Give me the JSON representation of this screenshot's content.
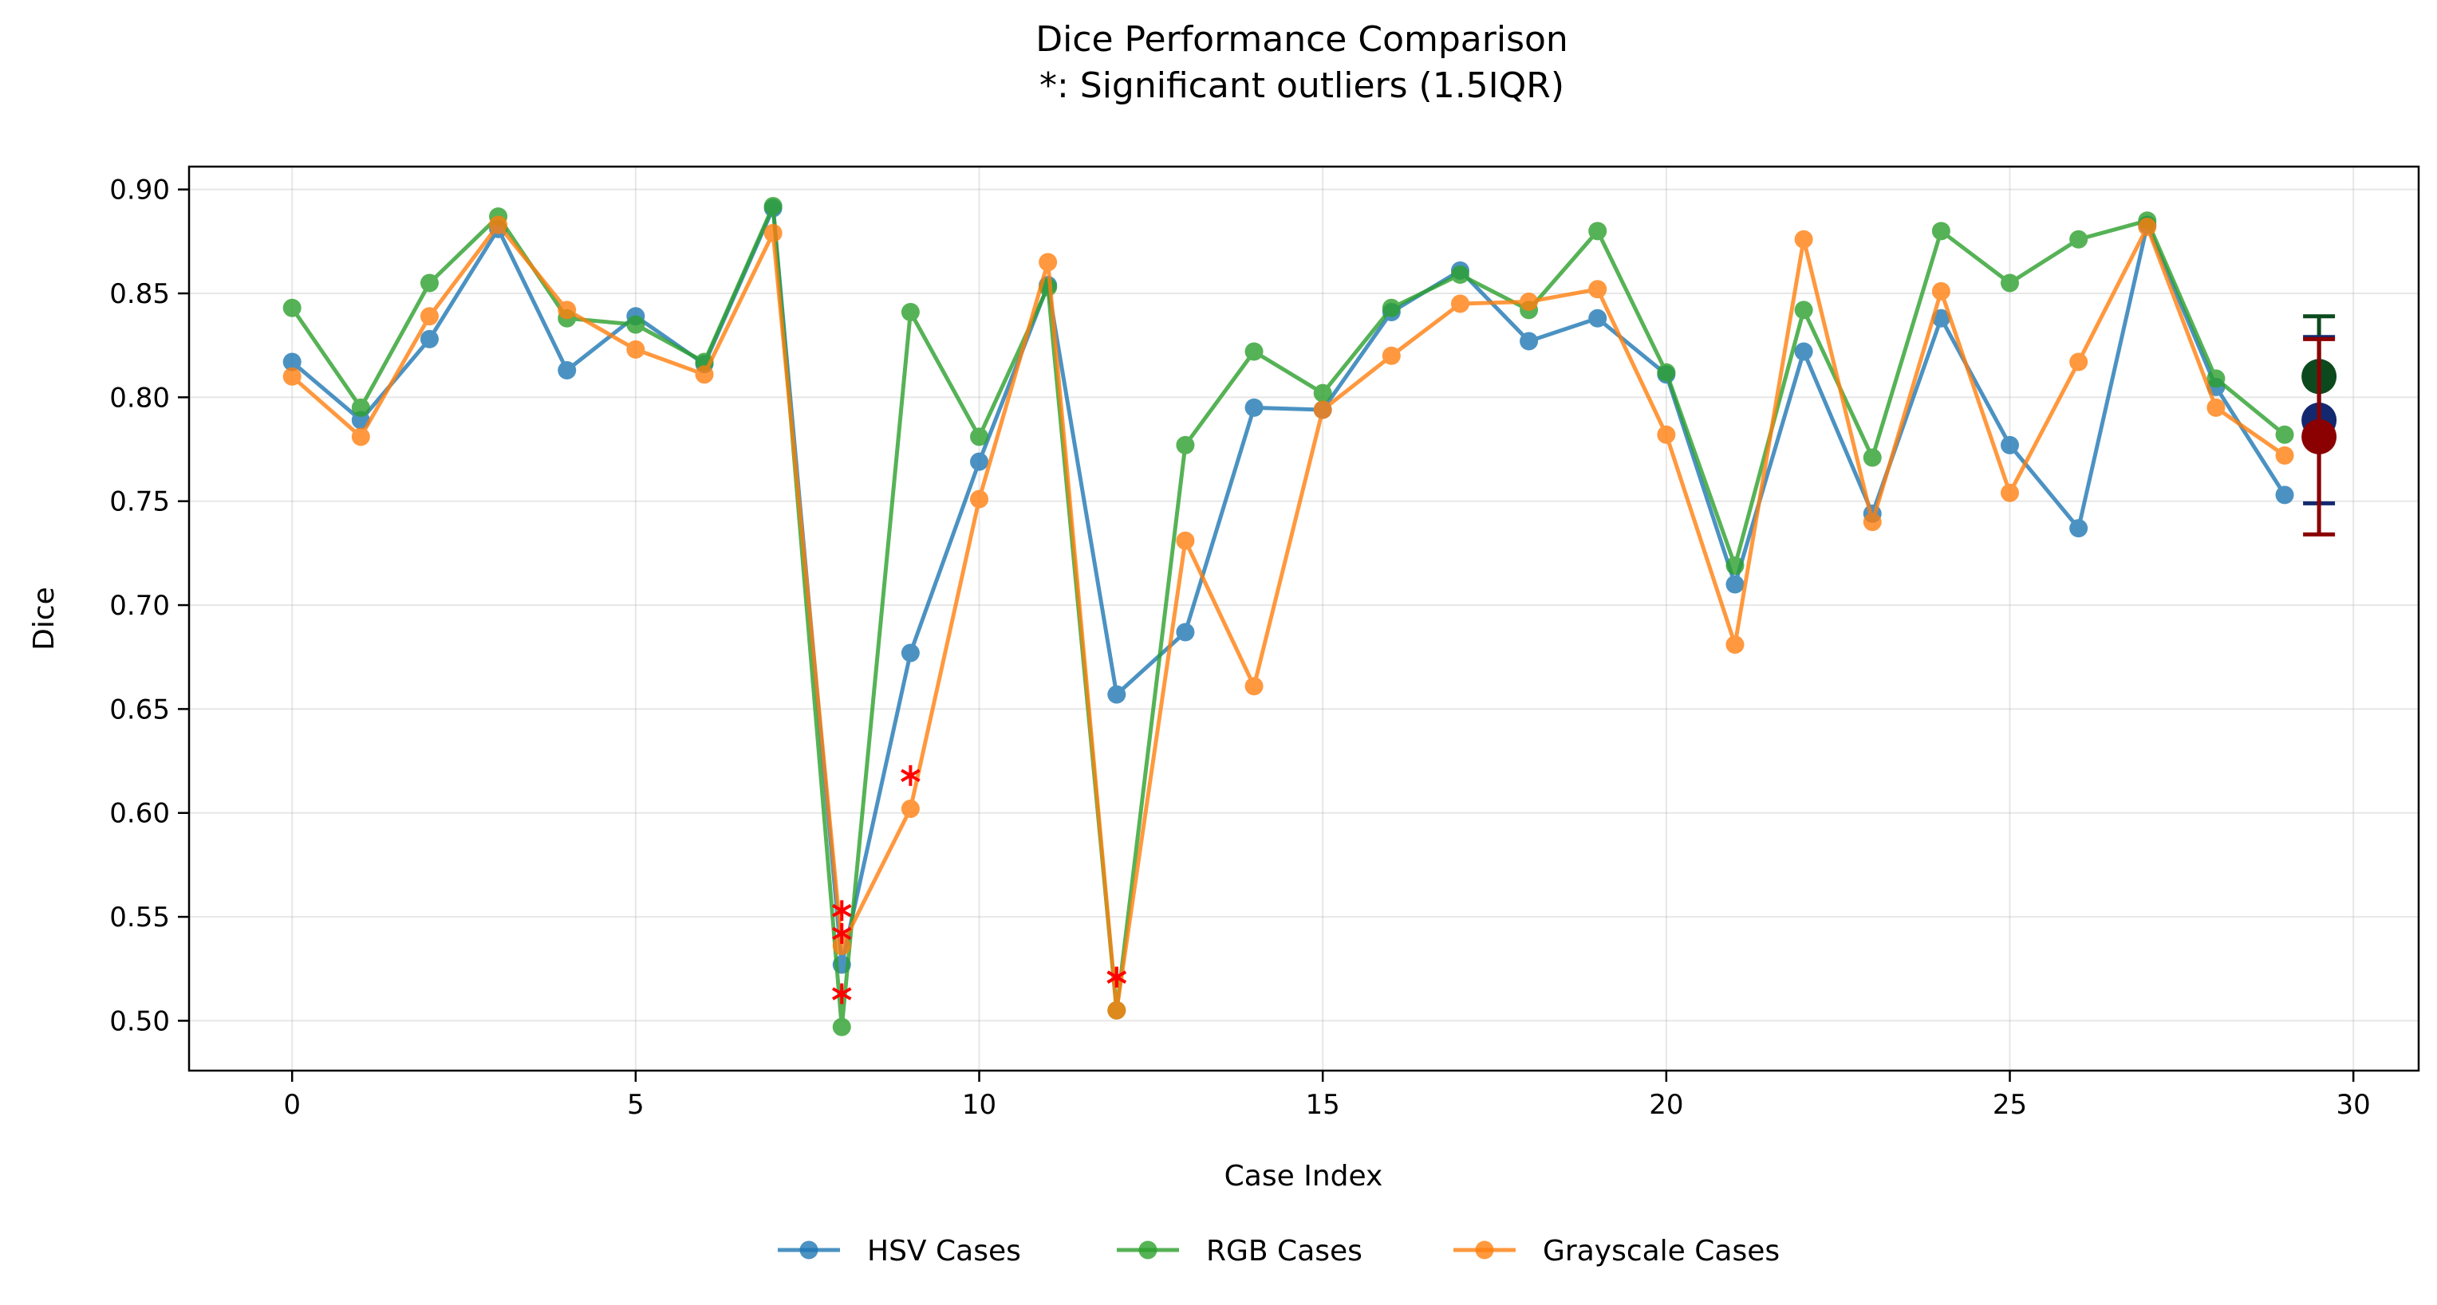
{
  "chart_data": {
    "type": "line",
    "title": "Dice Performance Comparison",
    "subtitle": "*: Significant outliers (1.5IQR)",
    "xlabel": "Case Index",
    "ylabel": "Dice",
    "xlim": [
      -1.5,
      30.95
    ],
    "ylim": [
      0.476,
      0.911
    ],
    "xticks": [
      0,
      5,
      10,
      15,
      20,
      25,
      30
    ],
    "yticks": [
      0.5,
      0.55,
      0.6,
      0.65,
      0.7,
      0.75,
      0.8,
      0.85,
      0.9
    ],
    "grid": true,
    "legend_position": "bottom-center",
    "x": [
      0,
      1,
      2,
      3,
      4,
      5,
      6,
      7,
      8,
      9,
      10,
      11,
      12,
      13,
      14,
      15,
      16,
      17,
      18,
      19,
      20,
      21,
      22,
      23,
      24,
      25,
      26,
      27,
      28,
      29
    ],
    "series": [
      {
        "name": "HSV Cases",
        "color": "#1f77b4",
        "values": [
          0.817,
          0.789,
          0.828,
          0.881,
          0.813,
          0.839,
          0.816,
          0.891,
          0.527,
          0.677,
          0.769,
          0.854,
          0.657,
          0.687,
          0.795,
          0.794,
          0.841,
          0.861,
          0.827,
          0.838,
          0.811,
          0.71,
          0.822,
          0.744,
          0.838,
          0.777,
          0.737,
          0.883,
          0.805,
          0.753
        ]
      },
      {
        "name": "RGB Cases",
        "color": "#2ca02c",
        "values": [
          0.843,
          0.795,
          0.855,
          0.887,
          0.838,
          0.835,
          0.817,
          0.892,
          0.497,
          0.841,
          0.781,
          0.853,
          0.505,
          0.777,
          0.822,
          0.802,
          0.843,
          0.859,
          0.842,
          0.88,
          0.812,
          0.719,
          0.842,
          0.771,
          0.88,
          0.855,
          0.876,
          0.885,
          0.809,
          0.782
        ]
      },
      {
        "name": "Grayscale Cases",
        "color": "#ff7f0e",
        "values": [
          0.81,
          0.781,
          0.839,
          0.883,
          0.842,
          0.823,
          0.811,
          0.879,
          0.536,
          0.602,
          0.751,
          0.865,
          0.505,
          0.731,
          0.661,
          0.794,
          0.82,
          0.845,
          0.846,
          0.852,
          0.782,
          0.681,
          0.876,
          0.74,
          0.851,
          0.754,
          0.817,
          0.882,
          0.795,
          0.772
        ]
      }
    ],
    "outliers": {
      "color": "#ff0000",
      "points": [
        {
          "x": 8,
          "y": 0.553
        },
        {
          "x": 8,
          "y": 0.542
        },
        {
          "x": 8,
          "y": 0.513
        },
        {
          "x": 9,
          "y": 0.618
        },
        {
          "x": 12,
          "y": 0.521
        },
        {
          "x": 12,
          "y": 0.521
        }
      ]
    },
    "summary_markers": [
      {
        "x": 29.5,
        "mean": 0.81,
        "low": 0.781,
        "high": 0.839,
        "color": "#0c4a1e"
      },
      {
        "x": 29.5,
        "mean": 0.789,
        "low": 0.749,
        "high": 0.829,
        "color": "#13286e"
      },
      {
        "x": 29.5,
        "mean": 0.781,
        "low": 0.734,
        "high": 0.828,
        "color": "#8b0000"
      }
    ]
  }
}
